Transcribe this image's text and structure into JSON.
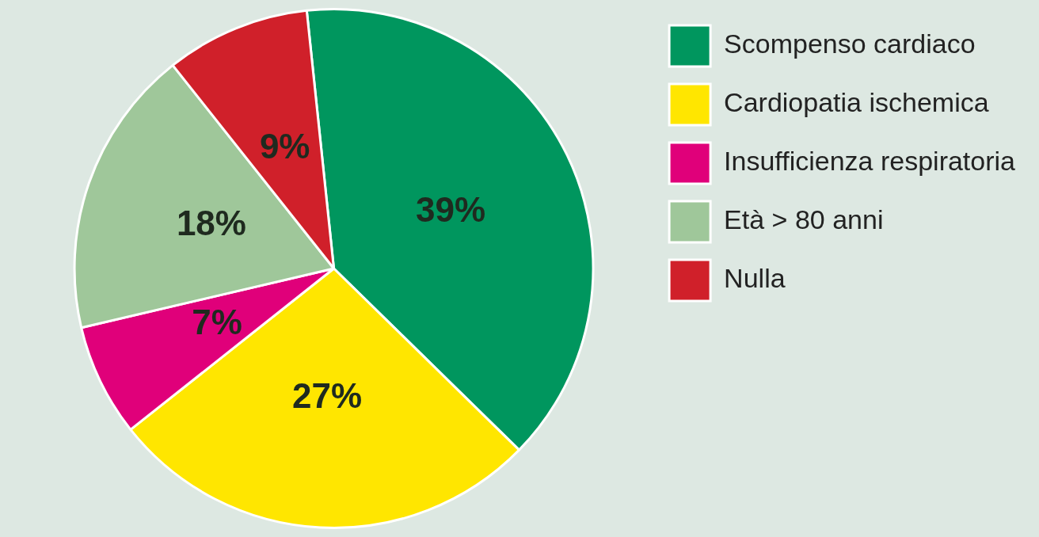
{
  "chart_data": {
    "type": "pie",
    "categories": [
      "Scompenso cardiaco",
      "Cardiopatia ischemica",
      "Insufficienza respiratoria",
      "Età > 80 anni",
      "Nulla"
    ],
    "values": [
      39,
      27,
      7,
      18,
      9
    ],
    "colors": [
      "#00965e",
      "#ffe600",
      "#e0007a",
      "#9fc79a",
      "#d0202a"
    ],
    "value_labels": [
      "39%",
      "27%",
      "7%",
      "18%",
      "9%"
    ],
    "legend": "right"
  }
}
